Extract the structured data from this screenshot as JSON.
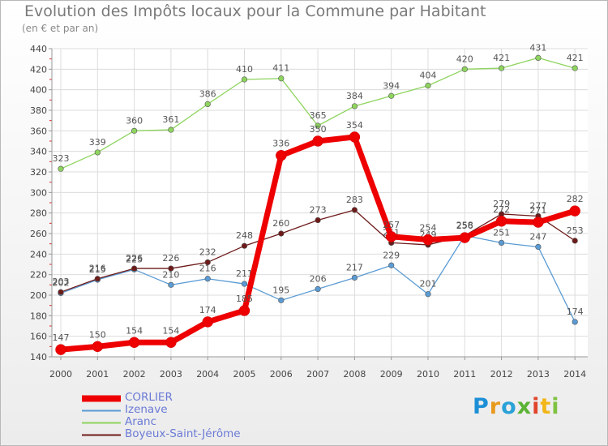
{
  "chart_data": {
    "type": "line",
    "title": "Evolution des Impôts locaux pour la Commune par Habitant",
    "subtitle": "(en € et par an)",
    "xlabel": "",
    "ylabel": "",
    "x": [
      "2000",
      "2001",
      "2002",
      "2003",
      "2004",
      "2005",
      "2006",
      "2007",
      "2008",
      "2009",
      "2010",
      "2011",
      "2012",
      "2013",
      "2014"
    ],
    "ylim": [
      140,
      440
    ],
    "yticks": [
      140,
      160,
      180,
      200,
      220,
      240,
      260,
      280,
      300,
      320,
      340,
      360,
      380,
      400,
      420,
      440
    ],
    "grid": true,
    "series": [
      {
        "name": "CORLIER",
        "color": "#ee0000",
        "values": [
          147,
          150,
          154,
          154,
          174,
          185,
          336,
          350,
          354,
          257,
          254,
          256,
          272,
          271,
          282
        ]
      },
      {
        "name": "Izenave",
        "color": "#5a9bd4",
        "values": [
          202,
          215,
          225,
          210,
          216,
          211,
          195,
          206,
          217,
          229,
          201,
          258,
          251,
          247,
          174
        ]
      },
      {
        "name": "Aranc",
        "color": "#8ed45e",
        "values": [
          323,
          339,
          360,
          361,
          386,
          410,
          411,
          365,
          384,
          394,
          404,
          420,
          421,
          431,
          421
        ]
      },
      {
        "name": "Boyeux-Saint-Jérôme",
        "color": "#6e1a1a",
        "values": [
          203,
          216,
          226,
          226,
          232,
          248,
          260,
          273,
          283,
          251,
          249,
          258,
          279,
          277,
          253
        ]
      }
    ],
    "legend_position": "bottom-left"
  },
  "logo": {
    "letters": [
      {
        "char": "P",
        "color": "#1d8fd6"
      },
      {
        "char": "r",
        "color": "#e89a1e"
      },
      {
        "char": "o",
        "color": "#2aa2d8"
      },
      {
        "char": "x",
        "color": "#5bb335"
      },
      {
        "char": "i",
        "color": "#e0452b"
      },
      {
        "char": "t",
        "color": "#f2b619"
      },
      {
        "char": "i",
        "color": "#7fc241"
      }
    ]
  }
}
